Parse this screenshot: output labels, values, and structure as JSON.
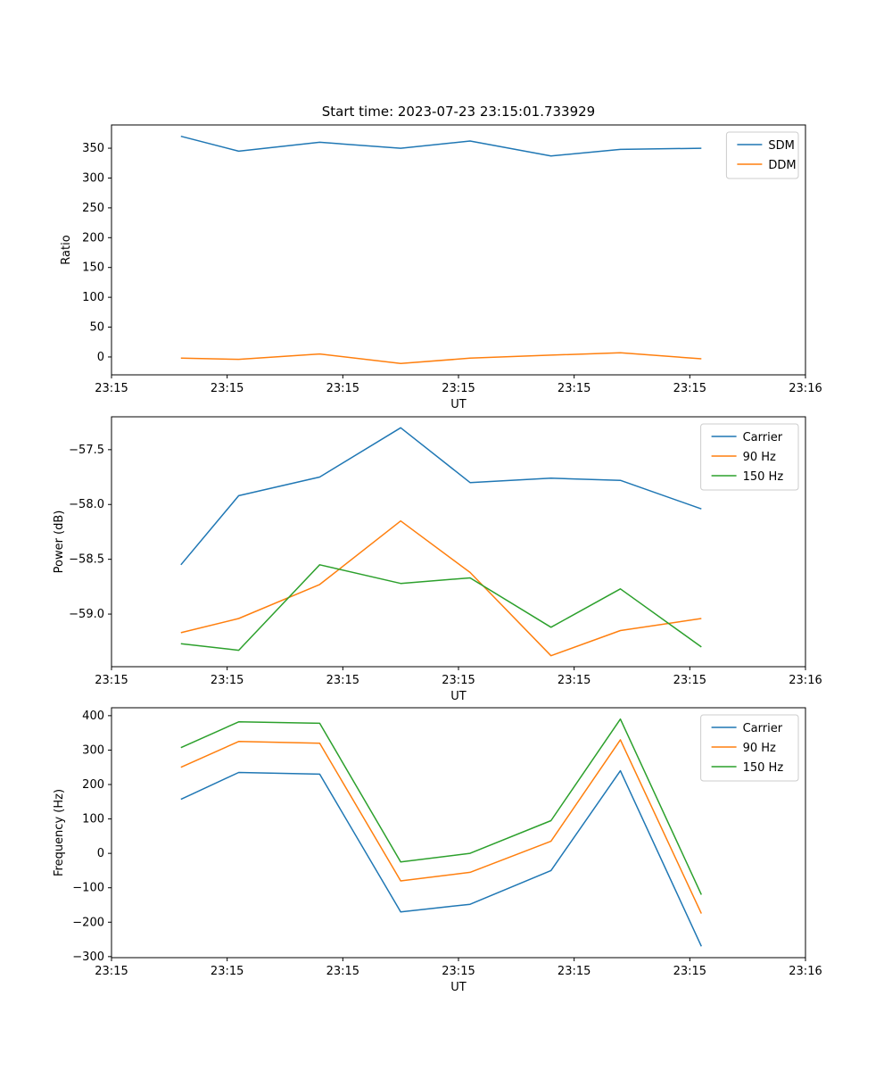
{
  "figure": {
    "background": "#ffffff",
    "title": "Start time: 2023-07-23 23:15:01.733929"
  },
  "colors": {
    "blue": "#1f77b4",
    "orange": "#ff7f0e",
    "green": "#2ca02c",
    "spine": "#000000",
    "legend_border": "#cccccc"
  },
  "chart_data": [
    {
      "type": "line",
      "title": "Start time: 2023-07-23 23:15:01.733929",
      "xlabel": "UT",
      "ylabel": "Ratio",
      "grid": false,
      "legend_position": "upper right",
      "x_seconds": [
        6,
        11,
        18,
        25,
        31,
        38,
        44,
        51
      ],
      "xlim": [
        0,
        60
      ],
      "ylim": [
        -30,
        389
      ],
      "xticks": [
        0,
        10,
        20,
        30,
        40,
        50,
        60
      ],
      "xtick_labels": [
        "23:15",
        "23:15",
        "23:15",
        "23:15",
        "23:15",
        "23:15",
        "23:16"
      ],
      "yticks": [
        0,
        50,
        100,
        150,
        200,
        250,
        300,
        350
      ],
      "ytick_labels": [
        "0",
        "50",
        "100",
        "150",
        "200",
        "250",
        "300",
        "350"
      ],
      "series": [
        {
          "name": "SDM",
          "color": "#1f77b4",
          "values": [
            370,
            345,
            360,
            350,
            362,
            337,
            348,
            350
          ]
        },
        {
          "name": "DDM",
          "color": "#ff7f0e",
          "values": [
            -2,
            -4,
            5,
            -11,
            -2,
            3,
            7,
            -3
          ]
        }
      ]
    },
    {
      "type": "line",
      "title": "",
      "xlabel": "UT",
      "ylabel": "Power (dB)",
      "grid": false,
      "legend_position": "upper right",
      "x_seconds": [
        6,
        11,
        18,
        25,
        31,
        38,
        44,
        51
      ],
      "xlim": [
        0,
        60
      ],
      "ylim": [
        -59.48,
        -57.2
      ],
      "xticks": [
        0,
        10,
        20,
        30,
        40,
        50,
        60
      ],
      "xtick_labels": [
        "23:15",
        "23:15",
        "23:15",
        "23:15",
        "23:15",
        "23:15",
        "23:16"
      ],
      "yticks": [
        -57.5,
        -58.0,
        -58.5,
        -59.0
      ],
      "ytick_labels": [
        "−57.5",
        "−58.0",
        "−58.5",
        "−59.0"
      ],
      "series": [
        {
          "name": "Carrier",
          "color": "#1f77b4",
          "values": [
            -58.55,
            -57.92,
            -57.75,
            -57.3,
            -57.8,
            -57.76,
            -57.78,
            -58.04
          ]
        },
        {
          "name": "90 Hz",
          "color": "#ff7f0e",
          "values": [
            -59.17,
            -59.04,
            -58.73,
            -58.15,
            -58.62,
            -59.38,
            -59.15,
            -59.04
          ]
        },
        {
          "name": "150 Hz",
          "color": "#2ca02c",
          "values": [
            -59.27,
            -59.33,
            -58.55,
            -58.72,
            -58.67,
            -59.12,
            -58.77,
            -59.3
          ]
        }
      ]
    },
    {
      "type": "line",
      "title": "",
      "xlabel": "UT",
      "ylabel": "Frequency (Hz)",
      "grid": false,
      "legend_position": "upper right",
      "x_seconds": [
        6,
        11,
        18,
        25,
        31,
        38,
        44,
        51
      ],
      "xlim": [
        0,
        60
      ],
      "ylim": [
        -303,
        423
      ],
      "xticks": [
        0,
        10,
        20,
        30,
        40,
        50,
        60
      ],
      "xtick_labels": [
        "23:15",
        "23:15",
        "23:15",
        "23:15",
        "23:15",
        "23:15",
        "23:16"
      ],
      "yticks": [
        400,
        300,
        200,
        100,
        0,
        -100,
        -200,
        -300
      ],
      "ytick_labels": [
        "400",
        "300",
        "200",
        "100",
        "0",
        "−100",
        "−200",
        "−300"
      ],
      "series": [
        {
          "name": "Carrier",
          "color": "#1f77b4",
          "values": [
            157,
            235,
            230,
            -170,
            -148,
            -50,
            240,
            -270
          ]
        },
        {
          "name": "90 Hz",
          "color": "#ff7f0e",
          "values": [
            250,
            325,
            320,
            -80,
            -55,
            35,
            330,
            -175
          ]
        },
        {
          "name": "150 Hz",
          "color": "#2ca02c",
          "values": [
            307,
            382,
            378,
            -25,
            0,
            95,
            390,
            -120
          ]
        }
      ]
    }
  ]
}
